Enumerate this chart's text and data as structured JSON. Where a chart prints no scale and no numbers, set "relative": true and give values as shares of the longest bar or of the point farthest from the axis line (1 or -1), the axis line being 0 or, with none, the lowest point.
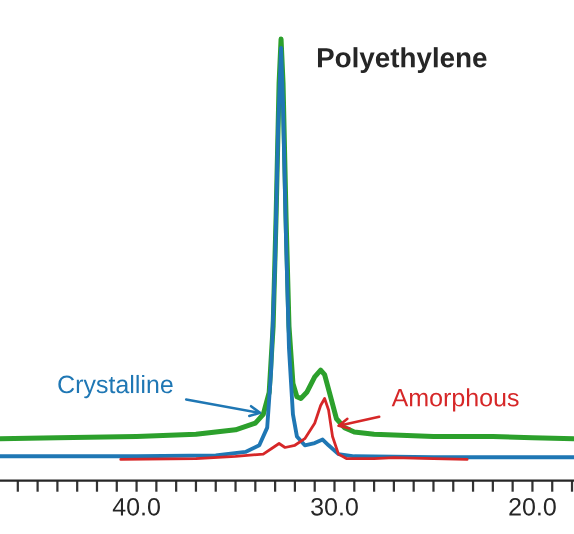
{
  "chart_data": {
    "type": "line",
    "title": "Polyethylene",
    "relative": true,
    "xlim": [
      46.9,
      17.9
    ],
    "xticks": [
      {
        "value": 46,
        "label": null
      },
      {
        "value": 45,
        "label": null
      },
      {
        "value": 44,
        "label": null
      },
      {
        "value": 43,
        "label": null
      },
      {
        "value": 42,
        "label": null
      },
      {
        "value": 41,
        "label": null
      },
      {
        "value": 40,
        "label": "40.0"
      },
      {
        "value": 39,
        "label": null
      },
      {
        "value": 38,
        "label": null
      },
      {
        "value": 37,
        "label": null
      },
      {
        "value": 36,
        "label": null
      },
      {
        "value": 35,
        "label": null
      },
      {
        "value": 34,
        "label": null
      },
      {
        "value": 33,
        "label": null
      },
      {
        "value": 32,
        "label": null
      },
      {
        "value": 31,
        "label": null
      },
      {
        "value": 30,
        "label": "30.0"
      },
      {
        "value": 29,
        "label": null
      },
      {
        "value": 28,
        "label": null
      },
      {
        "value": 27,
        "label": null
      },
      {
        "value": 26,
        "label": null
      },
      {
        "value": 25,
        "label": null
      },
      {
        "value": 24,
        "label": null
      },
      {
        "value": 23,
        "label": null
      },
      {
        "value": 22,
        "label": null
      },
      {
        "value": 21,
        "label": null
      },
      {
        "value": 20,
        "label": "20.0"
      },
      {
        "value": 19,
        "label": null
      },
      {
        "value": 18,
        "label": null
      }
    ],
    "grid": false,
    "legend": false,
    "marker": "none",
    "line_style": "solid",
    "series": [
      {
        "color": "#2ca02c",
        "x": [
          46.9,
          44,
          40,
          37,
          35,
          34,
          33.6,
          33.3,
          33.1,
          32.95,
          32.8,
          32.7,
          32.6,
          32.45,
          32.3,
          32.1,
          31.9,
          31.7,
          31.4,
          31.0,
          30.7,
          30.5,
          30.2,
          29.9,
          29.5,
          29,
          28,
          27,
          25,
          22,
          20,
          17.9
        ],
        "values": [
          0.095,
          0.097,
          0.1,
          0.105,
          0.115,
          0.13,
          0.15,
          0.2,
          0.35,
          0.6,
          0.9,
          1.0,
          0.9,
          0.6,
          0.35,
          0.22,
          0.19,
          0.186,
          0.2,
          0.235,
          0.25,
          0.24,
          0.19,
          0.14,
          0.12,
          0.11,
          0.105,
          0.103,
          0.1,
          0.1,
          0.097,
          0.095
        ]
      },
      {
        "color": "#1f77b4",
        "x": [
          46.9,
          40,
          36,
          34.5,
          33.8,
          33.4,
          33.2,
          33.0,
          32.85,
          32.7,
          32.6,
          32.45,
          32.3,
          32.1,
          31.9,
          31.5,
          31,
          30.6,
          30.3,
          29.8,
          29,
          25,
          17.9
        ],
        "values": [
          0.055,
          0.055,
          0.057,
          0.065,
          0.08,
          0.12,
          0.25,
          0.5,
          0.8,
          0.98,
          0.85,
          0.55,
          0.3,
          0.15,
          0.1,
          0.08,
          0.085,
          0.093,
          0.08,
          0.06,
          0.055,
          0.053,
          0.053
        ]
      },
      {
        "color": "#d62728",
        "x": [
          40.8,
          37,
          35,
          33.6,
          33.1,
          32.8,
          32.5,
          32,
          31.5,
          31.0,
          30.7,
          30.5,
          30.3,
          30.1,
          29.8,
          29.4,
          28,
          27,
          25,
          23.3
        ],
        "values": [
          0.048,
          0.05,
          0.055,
          0.06,
          0.075,
          0.084,
          0.075,
          0.08,
          0.095,
          0.13,
          0.17,
          0.186,
          0.16,
          0.1,
          0.06,
          0.05,
          0.05,
          0.052,
          0.05,
          0.048
        ]
      }
    ],
    "annotations": [
      {
        "text": "Crystalline",
        "x": 33.35,
        "y": 0.15
      },
      {
        "text": "Amorphous",
        "x": 30.2,
        "y": 0.12
      }
    ]
  }
}
